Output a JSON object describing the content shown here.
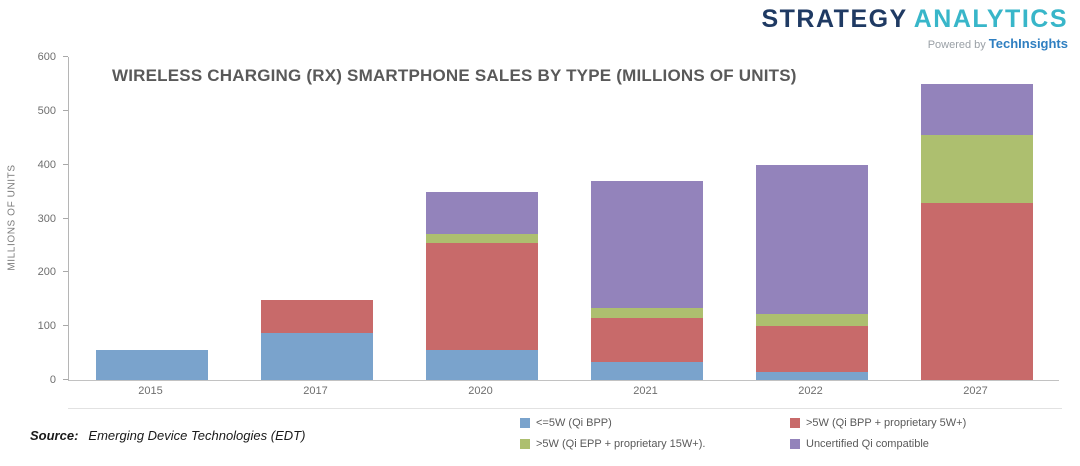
{
  "logo": {
    "part1": "STRATEGY",
    "part2": "ANALYTICS",
    "powered_by": "Powered by",
    "powered_brand": "TechInsights"
  },
  "title": "WIRELESS CHARGING (RX) SMARTPHONE SALES BY TYPE (MILLIONS OF UNITS)",
  "y_axis_title": "MILLIONS OF UNITS",
  "source": {
    "label": "Source:",
    "text": "Emerging Device Technologies (EDT)"
  },
  "chart_data": {
    "type": "bar",
    "stacked": true,
    "title": "WIRELESS CHARGING (RX) SMARTPHONE SALES BY TYPE (MILLIONS OF UNITS)",
    "xlabel": "",
    "ylabel": "MILLIONS OF UNITS",
    "categories": [
      "2015",
      "2017",
      "2020",
      "2021",
      "2022",
      "2027"
    ],
    "series": [
      {
        "name": "<=5W (Qi BPP)",
        "color": "#7aa3cc",
        "values": [
          55,
          88,
          55,
          33,
          15,
          0
        ]
      },
      {
        "name": ">5W (Qi BPP + proprietary 5W+)",
        "color": "#c86a6a",
        "values": [
          0,
          60,
          200,
          82,
          85,
          328
        ]
      },
      {
        "name": ">5W (Qi EPP + proprietary 15W+).",
        "color": "#adbf6f",
        "values": [
          0,
          0,
          17,
          18,
          22,
          127
        ]
      },
      {
        "name": "Uncertified Qi compatible",
        "color": "#9383bb",
        "values": [
          0,
          0,
          78,
          237,
          278,
          95
        ]
      }
    ],
    "ylim": [
      0,
      600
    ],
    "yticks": [
      0,
      100,
      200,
      300,
      400,
      500,
      600
    ],
    "grid": false,
    "legend_position": "bottom"
  }
}
